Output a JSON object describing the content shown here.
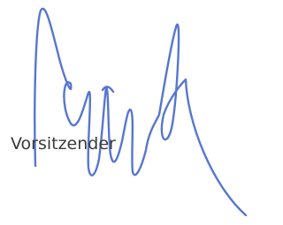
{
  "label": "Vorsitzender"
}
